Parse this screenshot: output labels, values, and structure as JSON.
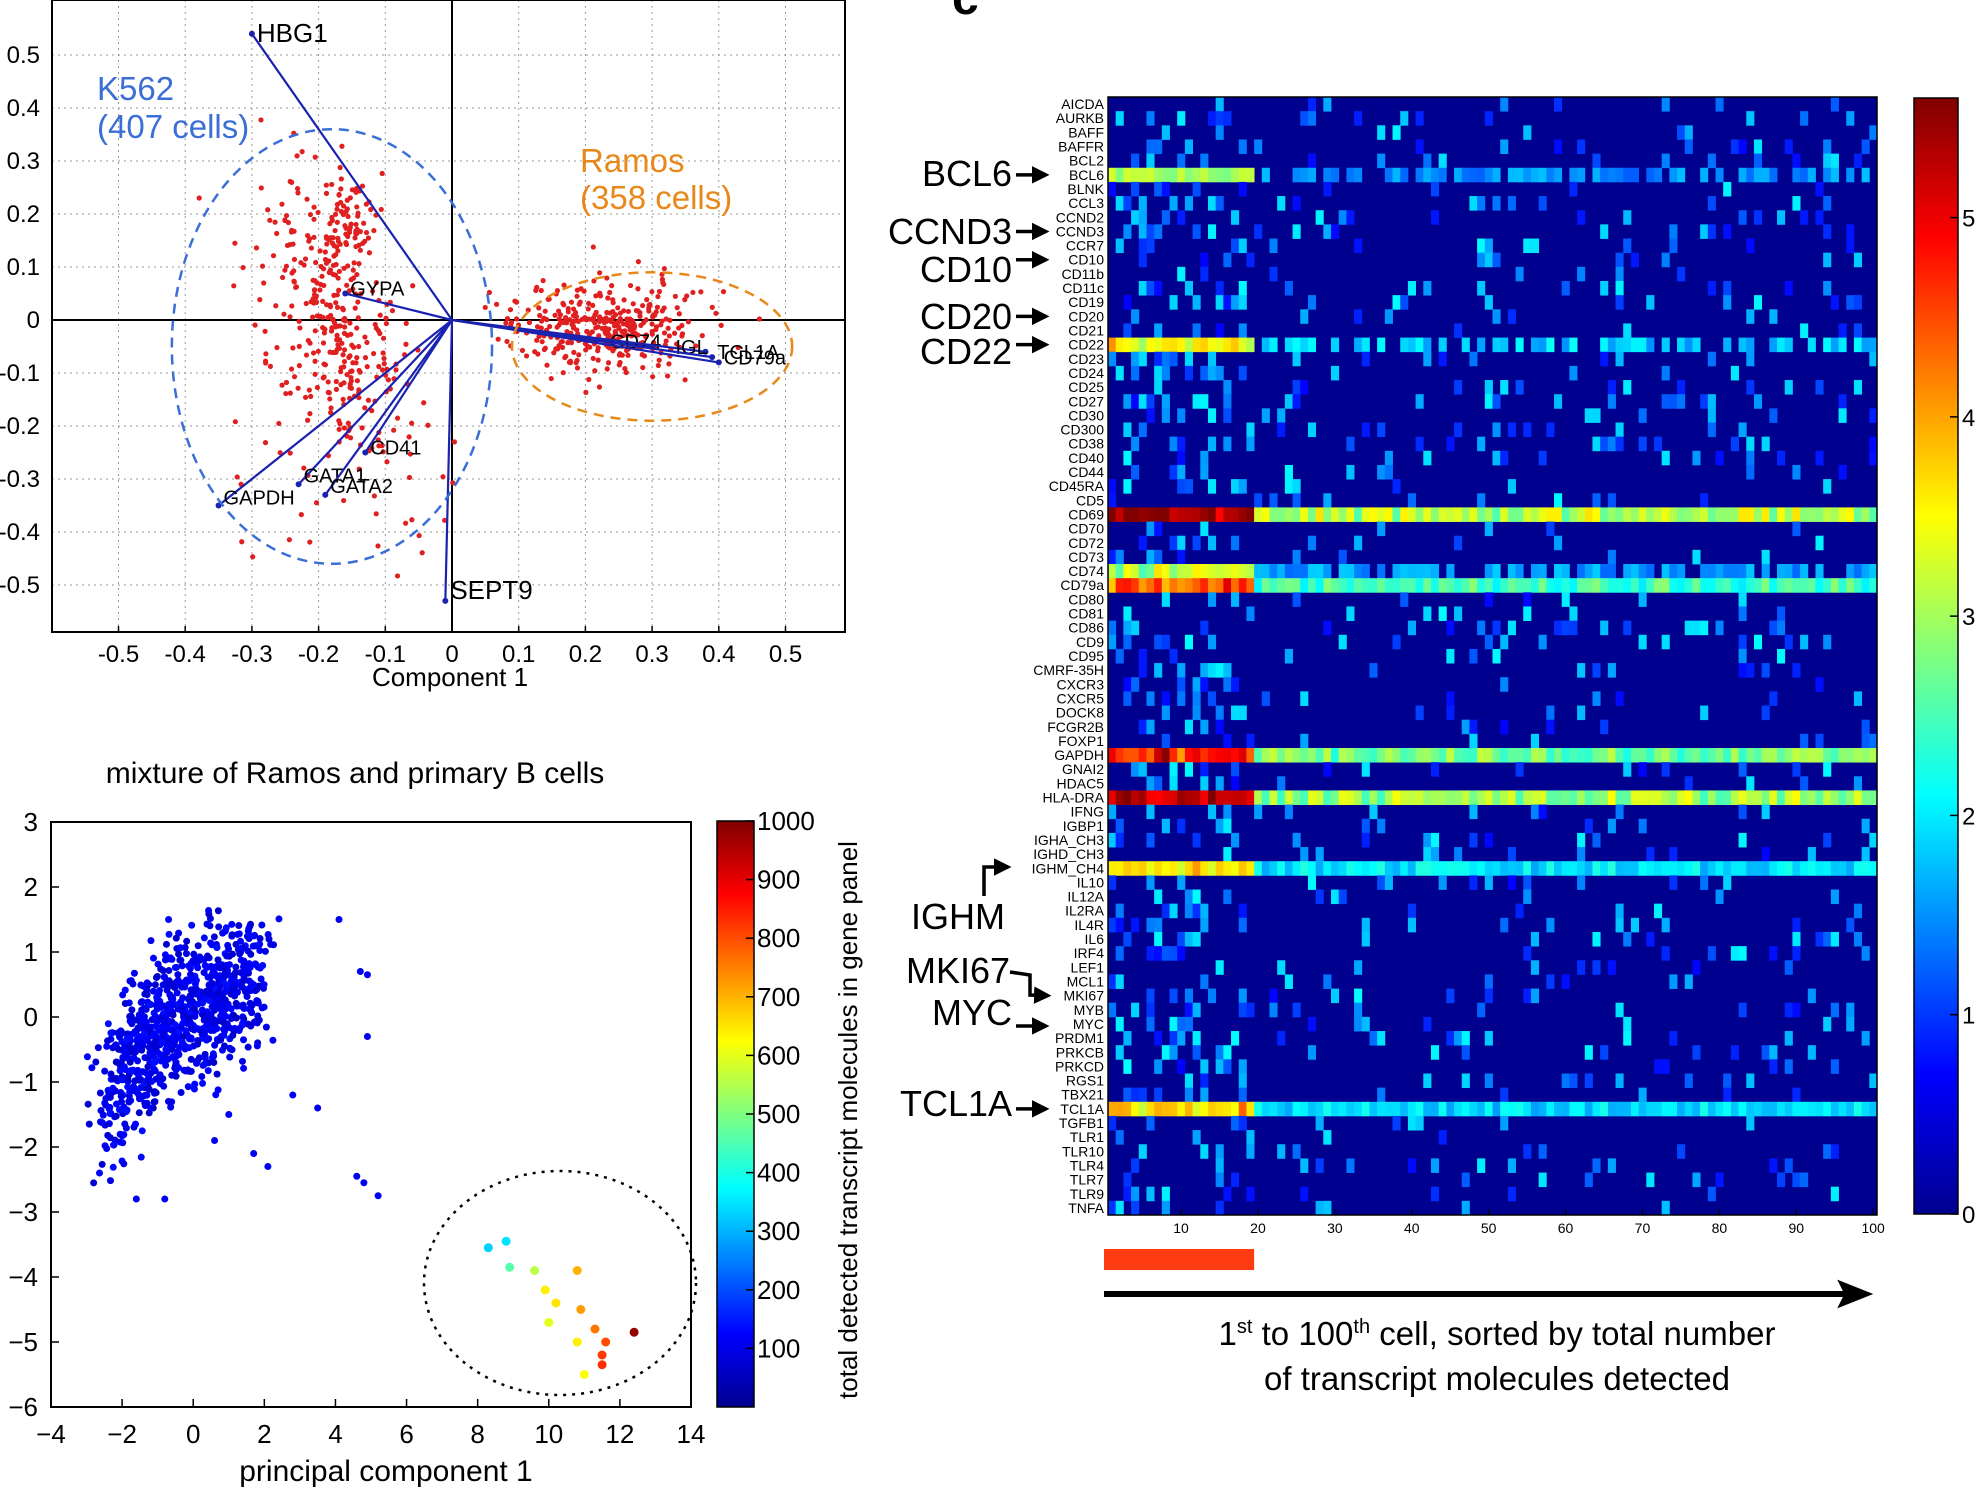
{
  "panel_letter": "c",
  "chart_data": [
    {
      "type": "scatter",
      "title": "",
      "xlabel": "Component 1",
      "ylabel": "",
      "xlim": [
        -0.6,
        0.6
      ],
      "ylim": [
        -0.6,
        0.6
      ],
      "xticks": [
        "-0.5",
        "-0.4",
        "-0.3",
        "-0.2",
        "-0.1",
        "0",
        "0.1",
        "0.2",
        "0.3",
        "0.4",
        "0.5"
      ],
      "yticks": [
        "0.5",
        "0.4",
        "0.3",
        "0.2",
        "0.1",
        "0",
        "-0.1",
        "-0.2",
        "-0.3",
        "-0.4",
        "-0.5"
      ],
      "grid": true,
      "point_color": "#e02020",
      "vector_color": "#1a22b0",
      "loadings": [
        {
          "gene": "HBG1",
          "x": -0.3,
          "y": 0.54
        },
        {
          "gene": "GYPA",
          "x": -0.16,
          "y": 0.05
        },
        {
          "gene": "CD41",
          "x": -0.13,
          "y": -0.25
        },
        {
          "gene": "GATA1",
          "x": -0.23,
          "y": -0.31
        },
        {
          "gene": "GATA2",
          "x": -0.19,
          "y": -0.33
        },
        {
          "gene": "GAPDH",
          "x": -0.35,
          "y": -0.35
        },
        {
          "gene": "SEPT9",
          "x": -0.01,
          "y": -0.53
        },
        {
          "gene": "CD74",
          "x": 0.3,
          "y": -0.05
        },
        {
          "gene": "IGL",
          "x": 0.38,
          "y": -0.06
        },
        {
          "gene": "CD79a",
          "x": 0.4,
          "y": -0.08
        },
        {
          "gene": "TCL1A",
          "x": 0.39,
          "y": -0.07
        }
      ],
      "groups": [
        {
          "label_line1": "K562",
          "label_line2": "(407 cells)",
          "color": "#3b6fd6",
          "cx": -0.18,
          "cy": -0.05,
          "rx": 0.24,
          "ry": 0.41
        },
        {
          "label_line1": "Ramos",
          "label_line2": "(358 cells)",
          "color": "#e8881a",
          "cx": 0.3,
          "cy": -0.05,
          "rx": 0.21,
          "ry": 0.14
        }
      ]
    },
    {
      "type": "scatter",
      "title": "mixture of Ramos and primary B cells",
      "xlabel": "principal component 1",
      "ylabel": "",
      "xlim": [
        -4,
        14
      ],
      "ylim": [
        -6,
        3
      ],
      "xticks": [
        "−4",
        "−2",
        "0",
        "2",
        "4",
        "6",
        "8",
        "10",
        "12",
        "14"
      ],
      "yticks": [
        "3",
        "2",
        "1",
        "0",
        "−1",
        "−2",
        "−3",
        "−4",
        "−5",
        "−6"
      ],
      "colorbar": {
        "label": "total detected transcript molecules in gene panel",
        "ticks": [
          "1000",
          "900",
          "800",
          "700",
          "600",
          "500",
          "400",
          "300",
          "200",
          "100"
        ],
        "range": [
          0,
          1000
        ]
      },
      "highlight_points": [
        {
          "x": 8.3,
          "y": -3.55,
          "v": 330
        },
        {
          "x": 8.8,
          "y": -3.45,
          "v": 350
        },
        {
          "x": 8.9,
          "y": -3.85,
          "v": 460
        },
        {
          "x": 9.6,
          "y": -3.9,
          "v": 560
        },
        {
          "x": 9.9,
          "y": -4.2,
          "v": 640
        },
        {
          "x": 10.2,
          "y": -4.4,
          "v": 650
        },
        {
          "x": 10.0,
          "y": -4.7,
          "v": 600
        },
        {
          "x": 10.8,
          "y": -3.9,
          "v": 700
        },
        {
          "x": 10.9,
          "y": -4.5,
          "v": 720
        },
        {
          "x": 10.8,
          "y": -5.0,
          "v": 640
        },
        {
          "x": 11.3,
          "y": -4.8,
          "v": 760
        },
        {
          "x": 11.6,
          "y": -5.0,
          "v": 800
        },
        {
          "x": 11.5,
          "y": -5.2,
          "v": 820
        },
        {
          "x": 11.5,
          "y": -5.35,
          "v": 830
        },
        {
          "x": 11.0,
          "y": -5.5,
          "v": 620
        },
        {
          "x": 12.4,
          "y": -4.85,
          "v": 980
        }
      ]
    },
    {
      "type": "heatmap",
      "xlabel_line1_pre": "1",
      "xlabel_line1_sup1": "st",
      "xlabel_line1_mid": " to 100",
      "xlabel_line1_sup2": "th",
      "xlabel_line1_post": " cell, sorted by total number",
      "xlabel_line2": "of transcript molecules detected",
      "xticks": [
        "10",
        "20",
        "30",
        "40",
        "50",
        "60",
        "70",
        "80",
        "90",
        "100"
      ],
      "n_cells": 100,
      "colorbar_ticks": [
        "5",
        "4",
        "3",
        "2",
        "1",
        "0"
      ],
      "colorbar_range": [
        0,
        5.6
      ],
      "genes": [
        "AICDA",
        "AURKB",
        "BAFF",
        "BAFFR",
        "BCL2",
        "BCL6",
        "BLNK",
        "CCL3",
        "CCND2",
        "CCND3",
        "CCR7",
        "CD10",
        "CD11b",
        "CD11c",
        "CD19",
        "CD20",
        "CD21",
        "CD22",
        "CD23",
        "CD24",
        "CD25",
        "CD27",
        "CD30",
        "CD300",
        "CD38",
        "CD40",
        "CD44",
        "CD45RA",
        "CD5",
        "CD69",
        "CD70",
        "CD72",
        "CD73",
        "CD74",
        "CD79a",
        "CD80",
        "CD81",
        "CD86",
        "CD9",
        "CD95",
        "CMRF-35H",
        "CXCR3",
        "CXCR5",
        "DOCK8",
        "FCGR2B",
        "FOXP1",
        "GAPDH",
        "GNAI2",
        "HDAC5",
        "HLA-DRA",
        "IFNG",
        "IGBP1",
        "IGHA_CH3",
        "IGHD_CH3",
        "IGHM_CH4",
        "IL10",
        "IL12A",
        "IL2RA",
        "IL4R",
        "IL6",
        "IRF4",
        "LEF1",
        "MCL1",
        "MKI67",
        "MYB",
        "MYC",
        "PRDM1",
        "PRKCB",
        "PRKCD",
        "RGS1",
        "TBX21",
        "TCL1A",
        "TGFB1",
        "TLR1",
        "TLR10",
        "TLR4",
        "TLR7",
        "TLR9",
        "TNFA"
      ],
      "strong_rows": {
        "CD69": 4.6,
        "HLA-DRA": 4.4,
        "GAPDH": 4.0,
        "CD79a": 3.6,
        "CD74": 2.3,
        "IGHM_CH4": 2.9,
        "CD22": 2.7,
        "TCL1A": 2.8,
        "BCL6": 2.2
      },
      "annotations": [
        {
          "text": "BCL6",
          "gene": "BCL6"
        },
        {
          "text": "CCND3",
          "gene": "CCND3"
        },
        {
          "text": "CD10",
          "gene": "CD10"
        },
        {
          "text": "CD20",
          "gene": "CD20"
        },
        {
          "text": "CD22",
          "gene": "CD22"
        },
        {
          "text": "IGHM",
          "gene": "IGHM_CH4"
        },
        {
          "text": "MKI67",
          "gene": "MKI67"
        },
        {
          "text": "MYC",
          "gene": "MYC"
        },
        {
          "text": "TCL1A",
          "gene": "TCL1A"
        }
      ],
      "highlight_bar_color": "#ff3b12",
      "highlight_bar_cells": [
        1,
        19
      ]
    }
  ]
}
